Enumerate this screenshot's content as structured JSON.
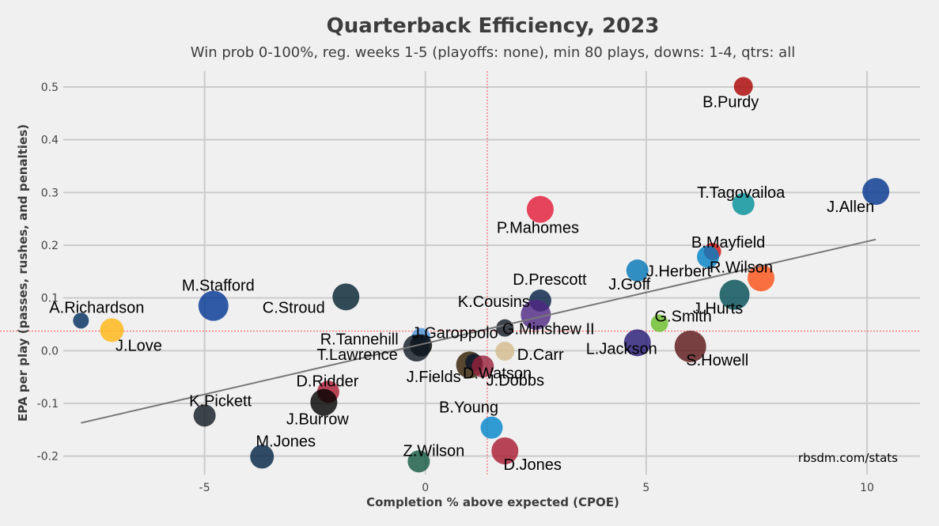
{
  "chart_data": {
    "type": "scatter",
    "title": "Quarterback Efficiency, 2023",
    "subtitle": "Win prob 0-100%, reg. weeks 1-5 (playoffs: none), min 80 plays, downs: 1-4, qtrs: all",
    "xlabel": "Completion % above expected (CPOE)",
    "ylabel": "EPA per play (passes, rushes, and penalties)",
    "xlim": [
      -8.2,
      11.2
    ],
    "ylim": [
      -0.235,
      0.53
    ],
    "xticks": [
      -5,
      0,
      5,
      10
    ],
    "yticks": [
      -0.2,
      -0.1,
      0.0,
      0.1,
      0.2,
      0.3,
      0.4,
      0.5
    ],
    "grid": true,
    "credit": "rbsdm.com/stats",
    "mean_lines": {
      "x": 1.4,
      "y": 0.037
    },
    "trend_line": {
      "x": [
        -7.8,
        10.2
      ],
      "y": [
        -0.137,
        0.211
      ]
    },
    "points": [
      {
        "name": "B.Purdy",
        "x": 7.2,
        "y": 0.501,
        "r": 12,
        "color": "#aa0000"
      },
      {
        "name": "J.Allen",
        "x": 10.2,
        "y": 0.302,
        "r": 17,
        "color": "#00338d"
      },
      {
        "name": "T.Tagovailoa",
        "x": 7.2,
        "y": 0.278,
        "r": 14,
        "color": "#008e97"
      },
      {
        "name": "P.Mahomes",
        "x": 2.6,
        "y": 0.268,
        "r": 17,
        "color": "#e31837"
      },
      {
        "name": "B.Mayfield",
        "x": 6.5,
        "y": 0.188,
        "r": 11,
        "color": "#d50a0a"
      },
      {
        "name": "J.Herbert",
        "x": 6.4,
        "y": 0.178,
        "r": 14,
        "color": "#0080c6"
      },
      {
        "name": "J.Goff",
        "x": 4.8,
        "y": 0.152,
        "r": 14,
        "color": "#0076b6"
      },
      {
        "name": "R.Wilson",
        "x": 7.6,
        "y": 0.138,
        "r": 17,
        "color": "#fb4f14"
      },
      {
        "name": "J.Hurts",
        "x": 7.0,
        "y": 0.106,
        "r": 19,
        "color": "#004c54"
      },
      {
        "name": "D.Prescott",
        "x": 2.6,
        "y": 0.095,
        "r": 14,
        "color": "#041e42"
      },
      {
        "name": "M.Stafford",
        "x": -4.8,
        "y": 0.085,
        "r": 19,
        "color": "#003594"
      },
      {
        "name": "C.Stroud",
        "x": -1.8,
        "y": 0.102,
        "r": 17,
        "color": "#03202f"
      },
      {
        "name": "K.Cousins",
        "x": 2.5,
        "y": 0.068,
        "r": 19,
        "color": "#4f2683"
      },
      {
        "name": "A.Richardson",
        "x": -7.8,
        "y": 0.057,
        "r": 10,
        "color": "#002c5f"
      },
      {
        "name": "G.Smith",
        "x": 5.3,
        "y": 0.052,
        "r": 11,
        "color": "#69be28"
      },
      {
        "name": "J.Love",
        "x": -7.1,
        "y": 0.039,
        "r": 15,
        "color": "#ffb612"
      },
      {
        "name": "G.Minshew II",
        "x": 1.8,
        "y": 0.043,
        "r": 11,
        "color": "#101820"
      },
      {
        "name": "R.Tannehill",
        "x": -0.1,
        "y": 0.025,
        "r": 12,
        "color": "#4b92db"
      },
      {
        "name": "J.Garoppolo",
        "x": -0.1,
        "y": 0.01,
        "r": 14,
        "color": "#000000"
      },
      {
        "name": "T.Lawrence",
        "x": -0.2,
        "y": 0.005,
        "r": 17,
        "color": "#101820"
      },
      {
        "name": "L.Jackson",
        "x": 4.8,
        "y": 0.015,
        "r": 17,
        "color": "#241773"
      },
      {
        "name": "S.Howell",
        "x": 6.0,
        "y": 0.008,
        "r": 20,
        "color": "#5a1414"
      },
      {
        "name": "D.Carr",
        "x": 1.8,
        "y": -0.001,
        "r": 12,
        "color": "#d3bc8d"
      },
      {
        "name": "D.Watson",
        "x": 1.0,
        "y": -0.027,
        "r": 17,
        "color": "#311d00"
      },
      {
        "name": "J.Fields",
        "x": 1.1,
        "y": -0.022,
        "r": 11,
        "color": "#0b162a"
      },
      {
        "name": "J.Dobbs",
        "x": 1.3,
        "y": -0.03,
        "r": 14,
        "color": "#97233f"
      },
      {
        "name": "D.Ridder",
        "x": -2.2,
        "y": -0.078,
        "r": 14,
        "color": "#a71930"
      },
      {
        "name": "J.Burrow",
        "x": -2.3,
        "y": -0.098,
        "r": 17,
        "color": "#000000"
      },
      {
        "name": "K.Pickett",
        "x": -5.0,
        "y": -0.123,
        "r": 14,
        "color": "#101820"
      },
      {
        "name": "B.Young",
        "x": 1.5,
        "y": -0.146,
        "r": 14,
        "color": "#0085ca"
      },
      {
        "name": "D.Jones",
        "x": 1.8,
        "y": -0.19,
        "r": 17,
        "color": "#a71930"
      },
      {
        "name": "M.Jones",
        "x": -3.7,
        "y": -0.201,
        "r": 15,
        "color": "#002244"
      },
      {
        "name": "Z.Wilson",
        "x": -0.15,
        "y": -0.21,
        "r": 14,
        "color": "#125740"
      }
    ]
  }
}
